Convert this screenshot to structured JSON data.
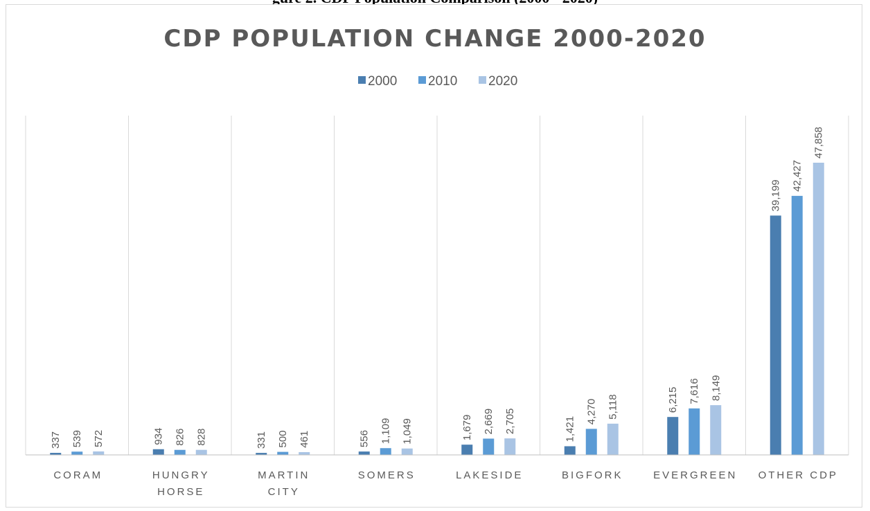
{
  "page": {
    "top_heading": "gure 2. CDP Population Comparison (2000 - 2020)"
  },
  "colors": {
    "s2000": "#4a7eb0",
    "s2010": "#5b9bd5",
    "s2020": "#a9c4e4",
    "grid": "#d9d9d9",
    "axis": "#bfbfbf",
    "text": "#595959"
  },
  "chart_data": {
    "type": "bar",
    "title": "CDP POPULATION CHANGE 2000-2020",
    "xlabel": "",
    "ylabel": "",
    "ylim": [
      0,
      55000
    ],
    "grid": "vertical category separators",
    "legend": "top-center",
    "categories": [
      [
        "CORAM"
      ],
      [
        "HUNGRY",
        "HORSE"
      ],
      [
        "MARTIN",
        "CITY"
      ],
      [
        "SOMERS"
      ],
      [
        "LAKESIDE"
      ],
      [
        "BIGFORK"
      ],
      [
        "EVERGREEN"
      ],
      [
        "OTHER CDP"
      ]
    ],
    "series": [
      {
        "name": "2000",
        "values": [
          337,
          934,
          331,
          556,
          1679,
          1421,
          6215,
          39199
        ],
        "labels": [
          "337",
          "934",
          "331",
          "556",
          "1,679",
          "1,421",
          "6,215",
          "39,199"
        ]
      },
      {
        "name": "2010",
        "values": [
          539,
          826,
          500,
          1109,
          2669,
          4270,
          7616,
          42427
        ],
        "labels": [
          "539",
          "826",
          "500",
          "1,109",
          "2,669",
          "4,270",
          "7,616",
          "42,427"
        ]
      },
      {
        "name": "2020",
        "values": [
          572,
          828,
          461,
          1049,
          2705,
          5118,
          8149,
          47858
        ],
        "labels": [
          "572",
          "828",
          "461",
          "1,049",
          "2,705",
          "5,118",
          "8,149",
          "47,858"
        ]
      }
    ]
  }
}
